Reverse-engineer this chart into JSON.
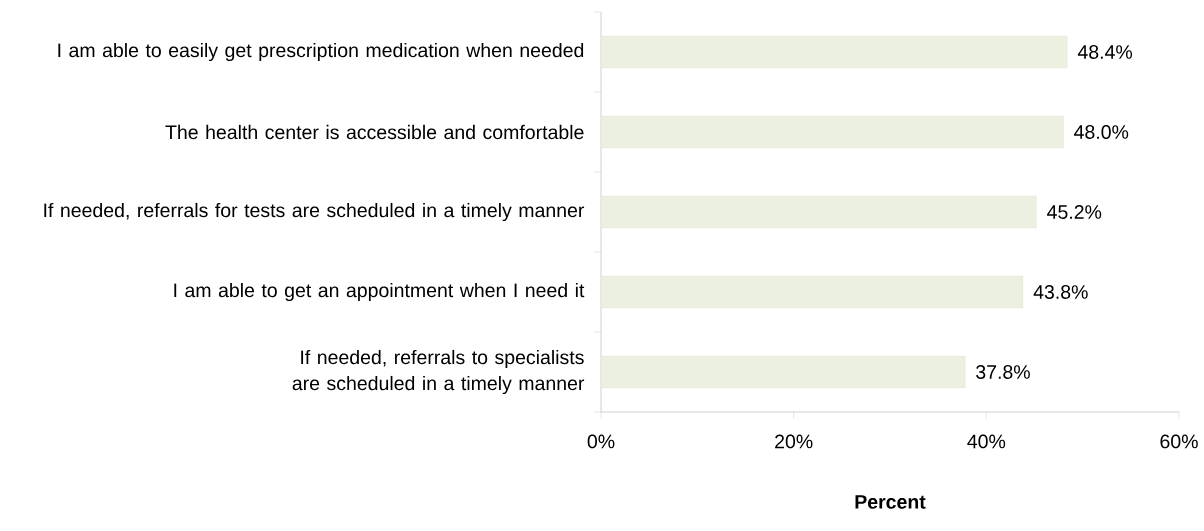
{
  "chart_data": {
    "type": "bar",
    "orientation": "horizontal",
    "xlabel": "Percent",
    "categories": [
      "I am able to easily get prescription medication when needed",
      "The health center is accessible and comfortable",
      "If needed, referrals for tests are scheduled in a timely manner",
      "I am able to get an appointment when I need it",
      "If needed, referrals to specialists are scheduled in a timely manner"
    ],
    "values": [
      48.4,
      48.0,
      45.2,
      43.8,
      37.8
    ],
    "value_labels": [
      "48.4%",
      "48.0%",
      "45.2%",
      "43.8%",
      "37.8%"
    ],
    "color": "#ebf0e0",
    "xlim": [
      0,
      60
    ],
    "xticks": [
      {
        "value": 0,
        "label": "0%"
      },
      {
        "value": 20,
        "label": "20%"
      },
      {
        "value": 40,
        "label": "40%"
      },
      {
        "value": 60,
        "label": "60%"
      }
    ],
    "grid": false
  }
}
